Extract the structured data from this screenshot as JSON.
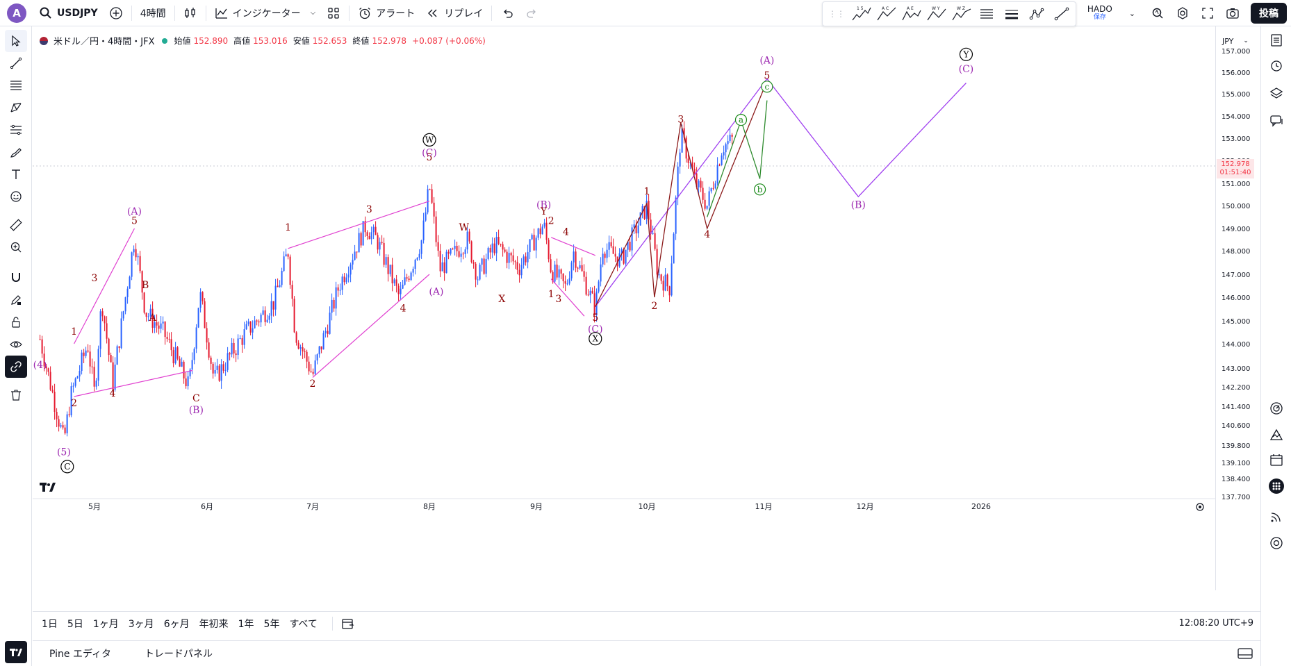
{
  "topbar": {
    "avatar_letter": "A",
    "symbol": "USDJPY",
    "interval": "4時間",
    "indicators_label": "インジケーター",
    "alert_label": "アラート",
    "replay_label": "リプレイ",
    "account_name": "HADO",
    "save_status": "保存",
    "post_label": "投稿"
  },
  "drawing_toolbar": {
    "wave_labels": [
      "1 5",
      "A C",
      "A E",
      "W Y",
      "W Z"
    ]
  },
  "legend": {
    "title": "米ドル／円・4時間・JFX",
    "open_label": "始値",
    "open": "152.890",
    "high_label": "高値",
    "high": "153.016",
    "low_label": "安値",
    "low": "152.653",
    "close_label": "終値",
    "close": "152.978",
    "change": "+0.087 (+0.06%)"
  },
  "price_scale": {
    "currency": "JPY",
    "ticks": [
      "157.000",
      "156.000",
      "155.000",
      "154.000",
      "153.000",
      "152.000",
      "151.000",
      "150.000",
      "149.000",
      "148.000",
      "147.000",
      "146.000",
      "145.000",
      "144.000",
      "143.000",
      "142.200",
      "141.400",
      "140.600",
      "139.800",
      "139.100",
      "138.400",
      "137.700"
    ],
    "current_price": "152.978",
    "countdown": "01:51:40"
  },
  "time_axis": {
    "labels": [
      "5月",
      "6月",
      "7月",
      "8月",
      "9月",
      "10月",
      "11月",
      "12月",
      "2026"
    ]
  },
  "range_bar": {
    "ranges": [
      "1日",
      "5日",
      "1ヶ月",
      "3ヶ月",
      "6ヶ月",
      "年初来",
      "1年",
      "5年",
      "すべて"
    ],
    "clock": "12:08:20 UTC+9"
  },
  "bottom_panel": {
    "tabs": [
      "Pine エディタ",
      "トレードパネル"
    ]
  },
  "chart_data": {
    "type": "candlestick",
    "symbol": "USDJPY",
    "interval": "4時間",
    "ylim": [
      137.7,
      157.0
    ],
    "x_labels": [
      "5月",
      "6月",
      "7月",
      "8月",
      "9月",
      "10月",
      "11月",
      "12月",
      "2026"
    ],
    "price_path": [
      {
        "date": "4/15",
        "price": 144.2
      },
      {
        "date": "4/22",
        "price": 139.9
      },
      {
        "date": "4/24",
        "price": 141.8
      },
      {
        "date": "4/29",
        "price": 144.0
      },
      {
        "date": "5/1",
        "price": 141.9
      },
      {
        "date": "5/3",
        "price": 145.9
      },
      {
        "date": "5/6",
        "price": 142.3
      },
      {
        "date": "5/12",
        "price": 148.6
      },
      {
        "date": "5/15",
        "price": 145.4
      },
      {
        "date": "5/20",
        "price": 144.5
      },
      {
        "date": "5/27",
        "price": 142.2
      },
      {
        "date": "5/30",
        "price": 146.2
      },
      {
        "date": "6/3",
        "price": 142.5
      },
      {
        "date": "6/12",
        "price": 144.5
      },
      {
        "date": "6/20",
        "price": 145.8
      },
      {
        "date": "6/24",
        "price": 148.0
      },
      {
        "date": "6/26",
        "price": 144.5
      },
      {
        "date": "7/1",
        "price": 142.7
      },
      {
        "date": "7/8",
        "price": 146.5
      },
      {
        "date": "7/15",
        "price": 149.1
      },
      {
        "date": "7/18",
        "price": 148.5
      },
      {
        "date": "7/24",
        "price": 146.0
      },
      {
        "date": "7/30",
        "price": 148.5
      },
      {
        "date": "8/1",
        "price": 150.9
      },
      {
        "date": "8/4",
        "price": 147.2
      },
      {
        "date": "8/12",
        "price": 148.5
      },
      {
        "date": "8/15",
        "price": 146.9
      },
      {
        "date": "8/20",
        "price": 148.3
      },
      {
        "date": "8/27",
        "price": 147.3
      },
      {
        "date": "9/3",
        "price": 149.2
      },
      {
        "date": "9/5",
        "price": 147.2
      },
      {
        "date": "9/9",
        "price": 146.4
      },
      {
        "date": "9/11",
        "price": 148.0
      },
      {
        "date": "9/17",
        "price": 145.5
      },
      {
        "date": "9/19",
        "price": 148.2
      },
      {
        "date": "9/24",
        "price": 147.6
      },
      {
        "date": "10/1",
        "price": 150.0
      },
      {
        "date": "10/4",
        "price": 147.0
      },
      {
        "date": "10/7",
        "price": 146.4
      },
      {
        "date": "10/10",
        "price": 153.2
      },
      {
        "date": "10/14",
        "price": 151.0
      },
      {
        "date": "10/17",
        "price": 150.0
      },
      {
        "date": "10/21",
        "price": 152.6
      },
      {
        "date": "10/24",
        "price": 152.978
      }
    ],
    "annotations": {
      "wave_labels": [
        {
          "text": "(4)",
          "color": "#9c27b0",
          "date": "4/15",
          "price": 143.0
        },
        {
          "text": "(5)",
          "color": "#9c27b0",
          "date": "4/22",
          "price": 139.4
        },
        {
          "text": "1",
          "color": "#8b0000",
          "date": "4/25",
          "price": 144.4
        },
        {
          "text": "2",
          "color": "#8b0000",
          "date": "4/25",
          "price": 141.4
        },
        {
          "text": "3",
          "color": "#8b0000",
          "date": "5/1",
          "price": 146.7
        },
        {
          "text": "4",
          "color": "#8b0000",
          "date": "5/6",
          "price": 141.8
        },
        {
          "text": "5",
          "color": "#8b0000",
          "date": "5/12",
          "price": 149.2
        },
        {
          "text": "(A)",
          "color": "#9c27b0",
          "date": "5/12",
          "price": 149.6
        },
        {
          "text": "B",
          "color": "#8b0000",
          "date": "5/15",
          "price": 146.4
        },
        {
          "text": "A",
          "color": "#8b0000",
          "date": "5/17",
          "price": 145.0
        },
        {
          "text": "C",
          "color": "#8b0000",
          "date": "5/29",
          "price": 141.6
        },
        {
          "text": "(B)",
          "color": "#9c27b0",
          "date": "5/29",
          "price": 141.1
        },
        {
          "text": "1",
          "color": "#8b0000",
          "date": "6/24",
          "price": 148.9
        },
        {
          "text": "2",
          "color": "#8b0000",
          "date": "7/1",
          "price": 142.2
        },
        {
          "text": "3",
          "color": "#8b0000",
          "date": "7/16",
          "price": 149.7
        },
        {
          "text": "4",
          "color": "#8b0000",
          "date": "7/25",
          "price": 145.4
        },
        {
          "text": "5",
          "color": "#8b0000",
          "date": "8/1",
          "price": 152.0
        },
        {
          "text": "(C)",
          "color": "#9c27b0",
          "date": "8/1",
          "price": 152.2
        },
        {
          "text": "W",
          "color": "#000000",
          "date": "8/1",
          "price": 152.8
        },
        {
          "text": "(A)",
          "color": "#9c27b0",
          "date": "8/3",
          "price": 146.1
        },
        {
          "text": "W",
          "color": "#8b0000",
          "date": "8/11",
          "price": 148.9
        },
        {
          "text": "X",
          "color": "#8b0000",
          "date": "8/22",
          "price": 145.8
        },
        {
          "text": "(B)",
          "color": "#9c27b0",
          "date": "9/3",
          "price": 149.9
        },
        {
          "text": "Y",
          "color": "#8b0000",
          "date": "9/3",
          "price": 149.6
        },
        {
          "text": "2",
          "color": "#8b0000",
          "date": "9/5",
          "price": 149.2
        },
        {
          "text": "4",
          "color": "#8b0000",
          "date": "9/9",
          "price": 148.7
        },
        {
          "text": "1",
          "color": "#8b0000",
          "date": "9/5",
          "price": 146.0
        },
        {
          "text": "3",
          "color": "#8b0000",
          "date": "9/7",
          "price": 145.8
        },
        {
          "text": "5",
          "color": "#8b0000",
          "date": "9/17",
          "price": 145.0
        },
        {
          "text": "(C)",
          "color": "#9c27b0",
          "date": "9/17",
          "price": 144.5
        },
        {
          "text": "X",
          "color": "#000000",
          "date": "9/17",
          "price": 144.1
        },
        {
          "text": "1",
          "color": "#8b0000",
          "date": "10/1",
          "price": 150.5
        },
        {
          "text": "2",
          "color": "#8b0000",
          "date": "10/3",
          "price": 145.5
        },
        {
          "text": "3",
          "color": "#8b0000",
          "date": "10/10",
          "price": 153.7
        },
        {
          "text": "4",
          "color": "#8b0000",
          "date": "10/17",
          "price": 148.6
        },
        {
          "text": "5",
          "color": "#8b0000",
          "date": "11/2",
          "price": 155.7
        },
        {
          "text": "(A)",
          "color": "#9c27b0",
          "date": "11/2",
          "price": 156.4
        },
        {
          "text": "a",
          "color": "#1b8a1b",
          "date": "10/26",
          "price": 153.7
        },
        {
          "text": "b",
          "color": "#1b8a1b",
          "date": "10/31",
          "price": 150.6
        },
        {
          "text": "c",
          "color": "#1b8a1b",
          "date": "11/2",
          "price": 155.2
        },
        {
          "text": "(B)",
          "color": "#9c27b0",
          "date": "11/29",
          "price": 149.9
        },
        {
          "text": "(C)",
          "color": "#9c27b0",
          "date": "12/28",
          "price": 156.0
        },
        {
          "text": "Y",
          "color": "#000000",
          "date": "12/28",
          "price": 156.7
        },
        {
          "text": "C",
          "color": "#000000",
          "date": "4/23",
          "price": 138.8
        }
      ]
    }
  }
}
